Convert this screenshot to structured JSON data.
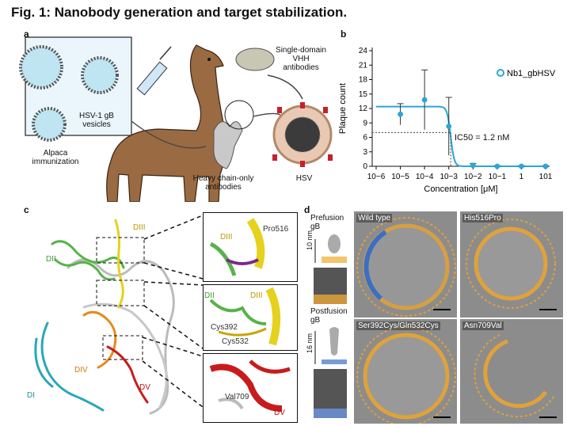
{
  "figure": {
    "title": "Fig. 1: Nanobody generation and target stabilization."
  },
  "panel_a": {
    "label": "a",
    "vesicles": "HSV-1 gB\nvesicles",
    "immunization": "Alpaca\nimmunization",
    "vhh": "Single-domain\nVHH\nantibodies",
    "heavy": "Heavy chain-only\nantibodies",
    "hsv": "HSV"
  },
  "panel_b": {
    "label": "b",
    "ic50": "IC50 = 1.2 nM"
  },
  "chart_data": {
    "type": "scatter",
    "xlabel": "Concentration [μM]",
    "ylabel": "Plaque count",
    "xscale": "log",
    "xlim": [
      1e-06,
      10
    ],
    "ylim": [
      0,
      24
    ],
    "xticks": [
      "10−6",
      "10−5",
      "10−4",
      "10−3",
      "10−2",
      "10−1",
      "1",
      "101"
    ],
    "yticks": [
      0,
      3,
      6,
      9,
      12,
      15,
      18,
      21,
      24
    ],
    "series": [
      {
        "name": "Nb1_gbHSV",
        "color": "#2aa7d6",
        "x": [
          1e-05,
          0.0001,
          0.001,
          0.01,
          0.1,
          1,
          10
        ],
        "y": [
          10.8,
          13.8,
          8.3,
          0.2,
          0,
          0,
          0
        ],
        "err": [
          2.2,
          6.2,
          6.0,
          0.4,
          0.1,
          0.1,
          0.1
        ]
      }
    ],
    "ic50_y": 7
  },
  "panel_c": {
    "label": "c",
    "dii": "DII",
    "diii": "DIII",
    "div": "DIV",
    "di": "DI",
    "dv": "DV",
    "z1_diii": "DIII",
    "z1_pro": "Pro516",
    "z2_dii": "DII",
    "z2_diii": "DIII",
    "z2_cys392": "Cys392",
    "z2_cys532": "Cys532",
    "z3_val": "Val709",
    "z3_dv": "DV"
  },
  "panel_d": {
    "label": "d",
    "prefusion": "Prefusion\ngB",
    "postfusion": "Postfusion\ngB",
    "pre_scale": "10 nm",
    "post_scale": "16 nm",
    "wt": "Wild type",
    "his": "His516Pro",
    "ser": "Ser392Cys/Gln532Cys",
    "asn": "Asn709Val"
  }
}
